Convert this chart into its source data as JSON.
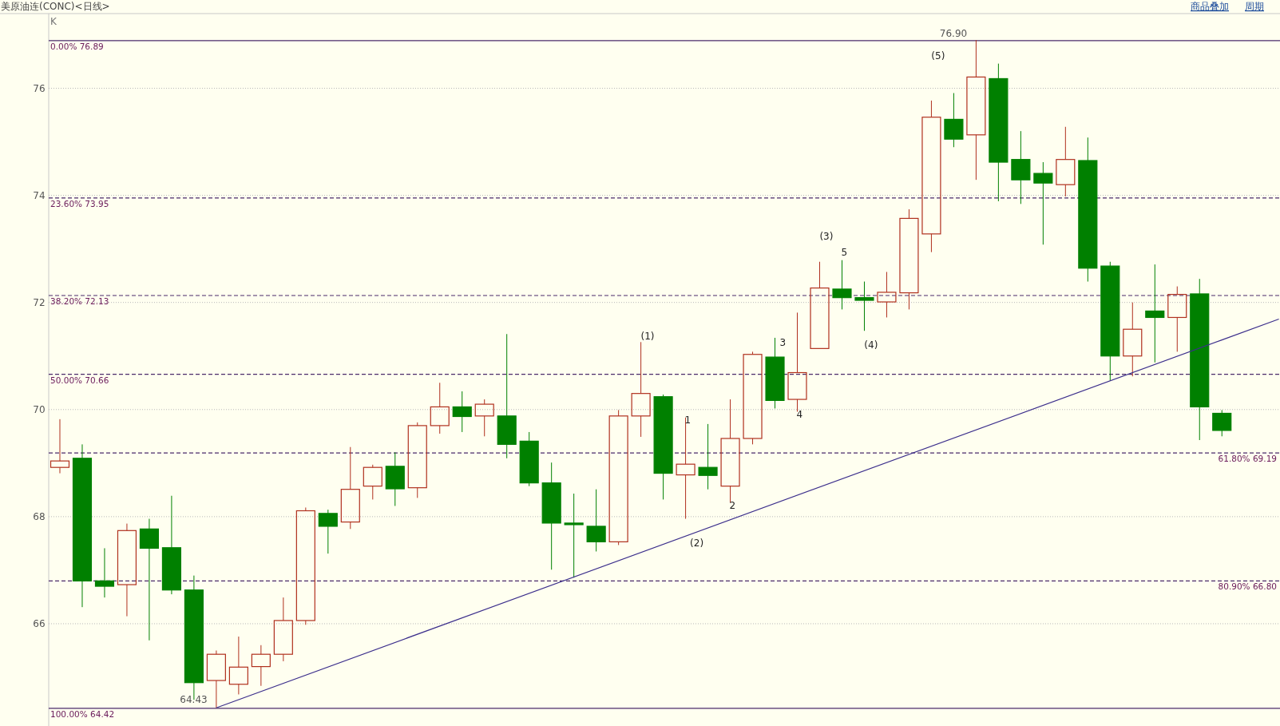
{
  "chart_data": {
    "type": "candlestick",
    "title": "美原油连(CONC)<日线>",
    "categories": [
      null,
      null,
      null,
      null,
      null,
      null,
      null,
      null,
      null,
      null,
      null,
      null,
      null,
      null,
      null,
      null,
      null,
      null,
      null,
      null,
      null,
      null,
      null,
      null,
      null,
      null,
      null,
      null,
      null,
      null,
      null,
      null,
      null,
      null,
      null,
      null,
      null,
      null,
      null,
      null,
      null,
      null,
      null,
      null,
      null,
      null,
      null,
      null,
      null,
      null,
      null,
      null,
      null
    ],
    "series": [
      {
        "colors": [
          "#b0301e",
          "#008000",
          "#008000",
          "#b0301e",
          "#008000",
          "#008000",
          "#008000",
          "#b0301e",
          "#b0301e",
          "#b0301e",
          "#b0301e",
          "#b0301e",
          "#008000",
          "#b0301e",
          "#b0301e",
          "#008000",
          "#b0301e",
          "#b0301e",
          "#008000",
          "#b0301e",
          "#008000",
          "#008000",
          "#008000",
          "#008000",
          "#008000",
          "#b0301e",
          "#b0301e",
          "#008000",
          "#b0301e",
          "#008000",
          "#b0301e",
          "#b0301e",
          "#008000",
          "#b0301e",
          "#b0301e",
          "#008000",
          "#008000",
          "#b0301e",
          "#b0301e",
          "#b0301e",
          "#008000",
          "#b0301e",
          "#008000",
          "#008000",
          "#008000",
          "#b0301e",
          "#008000",
          "#008000",
          "#b0301e",
          "#008000",
          "#b0301e",
          "#008000",
          "#008000"
        ],
        "ohlc": [
          [
            68.92,
            69.82,
            68.81,
            69.04
          ],
          [
            69.09,
            69.35,
            66.31,
            66.8
          ],
          [
            66.8,
            67.41,
            66.49,
            66.7
          ],
          [
            66.73,
            67.87,
            66.14,
            67.74
          ],
          [
            67.77,
            67.96,
            65.69,
            67.41
          ],
          [
            67.42,
            68.39,
            66.55,
            66.63
          ],
          [
            66.63,
            66.9,
            64.58,
            64.9
          ],
          [
            64.94,
            65.5,
            64.43,
            65.43
          ],
          [
            64.87,
            65.76,
            64.68,
            65.19
          ],
          [
            65.2,
            65.6,
            64.84,
            65.43
          ],
          [
            65.43,
            66.49,
            65.3,
            66.06
          ],
          [
            66.06,
            68.17,
            65.98,
            68.11
          ],
          [
            68.06,
            68.13,
            67.31,
            67.82
          ],
          [
            67.9,
            69.3,
            67.77,
            68.51
          ],
          [
            68.57,
            68.97,
            68.32,
            68.92
          ],
          [
            68.94,
            69.2,
            68.2,
            68.52
          ],
          [
            68.54,
            69.76,
            68.35,
            69.7
          ],
          [
            69.7,
            70.5,
            69.55,
            70.05
          ],
          [
            70.05,
            70.34,
            69.58,
            69.87
          ],
          [
            69.88,
            70.19,
            69.5,
            70.1
          ],
          [
            69.88,
            71.41,
            69.09,
            69.35
          ],
          [
            69.41,
            69.58,
            68.57,
            68.63
          ],
          [
            68.63,
            69.01,
            67.01,
            67.88
          ],
          [
            67.88,
            68.43,
            66.86,
            67.85
          ],
          [
            67.82,
            68.51,
            67.35,
            67.53
          ],
          [
            67.53,
            69.99,
            67.47,
            69.88
          ],
          [
            69.88,
            71.26,
            69.49,
            70.3
          ],
          [
            70.24,
            70.28,
            68.32,
            68.81
          ],
          [
            68.78,
            69.85,
            67.96,
            68.98
          ],
          [
            68.92,
            69.73,
            68.51,
            68.77
          ],
          [
            68.57,
            70.19,
            68.26,
            69.46
          ],
          [
            69.46,
            71.08,
            69.35,
            71.03
          ],
          [
            70.98,
            71.34,
            70.02,
            70.17
          ],
          [
            70.19,
            71.81,
            69.96,
            70.69
          ],
          [
            71.14,
            72.76,
            71.14,
            72.27
          ],
          [
            72.25,
            72.79,
            71.87,
            72.09
          ],
          [
            72.09,
            72.39,
            71.47,
            72.04
          ],
          [
            72.01,
            72.57,
            71.72,
            72.19
          ],
          [
            72.18,
            73.74,
            71.87,
            73.57
          ],
          [
            73.28,
            75.77,
            72.94,
            75.46
          ],
          [
            75.42,
            75.91,
            74.9,
            75.05
          ],
          [
            75.13,
            76.9,
            74.29,
            76.21
          ],
          [
            76.18,
            76.46,
            73.89,
            74.62
          ],
          [
            74.67,
            75.2,
            73.84,
            74.29
          ],
          [
            74.41,
            74.62,
            73.08,
            74.23
          ],
          [
            74.2,
            75.28,
            73.98,
            74.67
          ],
          [
            74.65,
            75.08,
            72.39,
            72.64
          ],
          [
            72.68,
            72.76,
            70.54,
            71.0
          ],
          [
            71.0,
            72.0,
            70.62,
            71.5
          ],
          [
            71.84,
            72.71,
            70.88,
            71.72
          ],
          [
            71.72,
            72.3,
            71.08,
            72.15
          ],
          [
            72.16,
            72.44,
            69.43,
            70.05
          ],
          [
            69.93,
            69.99,
            69.5,
            69.61
          ]
        ]
      },
      {
        "type": "line",
        "color": "#3c2f8c",
        "values": [
          null,
          null,
          null,
          null,
          null,
          null,
          null,
          64.43,
          null,
          null,
          null,
          null,
          null,
          null,
          null,
          null,
          null,
          null,
          null,
          null,
          null,
          null,
          null,
          null,
          null,
          null,
          null,
          null,
          null,
          null,
          null,
          null,
          null,
          null,
          null,
          null,
          null,
          null,
          null,
          null,
          null,
          null,
          null,
          null,
          null,
          null,
          null,
          null,
          null,
          null,
          null,
          null,
          71.3
        ]
      }
    ],
    "ylim": [
      64.15,
      77.35
    ],
    "yticks": [
      66,
      68,
      70,
      72,
      74,
      76
    ],
    "grid": "y",
    "ref_lines": [
      {
        "axis": "y",
        "value": 76.89,
        "label": "0.00% 76.89",
        "color": "#4a2a6a",
        "line_style": "solid"
      },
      {
        "axis": "y",
        "value": 73.95,
        "label": "23.60% 73.95",
        "color": "#4a2a6a",
        "line_style": "dashed"
      },
      {
        "axis": "y",
        "value": 72.13,
        "label": "38.20% 72.13",
        "color": "#4a2a6a",
        "line_style": "dashed"
      },
      {
        "axis": "y",
        "value": 70.66,
        "label": "50.00% 70.66",
        "color": "#4a2a6a",
        "line_style": "dashed"
      },
      {
        "axis": "y",
        "value": 69.19,
        "label": "61.80% 69.19",
        "color": "#4a2a6a",
        "line_style": "dashed"
      },
      {
        "axis": "y",
        "value": 66.8,
        "label": "80.90% 66.80",
        "color": "#4a2a6a",
        "line_style": "dashed"
      },
      {
        "axis": "y",
        "value": 64.42,
        "label": "100.00% 64.42",
        "color": "#4a2a6a",
        "line_style": "solid"
      }
    ],
    "annotations": [
      "K",
      "76.90",
      "64.43",
      "(1)",
      "1",
      "(2)",
      "2",
      "3",
      "4",
      "(3)",
      "5",
      "(4)",
      "(5)",
      "商品叠加",
      "周期"
    ]
  }
}
